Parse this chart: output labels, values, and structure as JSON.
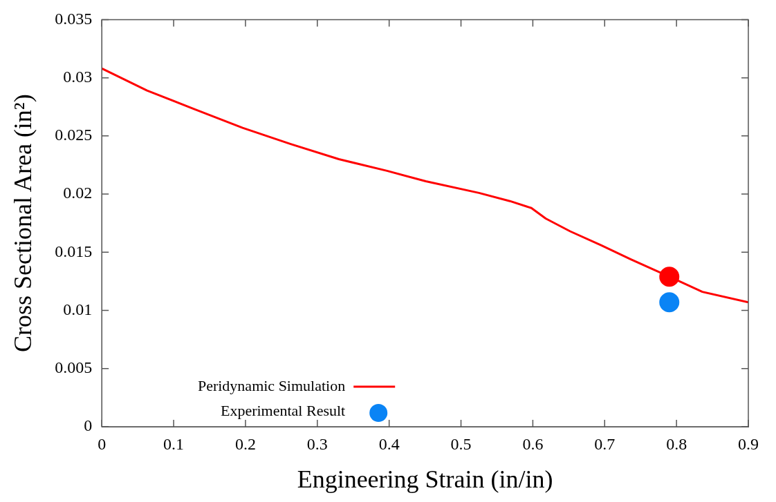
{
  "chart_data": {
    "type": "line",
    "xlabel": "Engineering Strain (in/in)",
    "ylabel": "Cross Sectional Area (in²)",
    "xlim": [
      0,
      0.9
    ],
    "xticks": [
      0,
      0.1,
      0.2,
      0.3,
      0.4,
      0.5,
      0.6,
      0.7,
      0.8,
      0.9
    ],
    "ylim": [
      0,
      0.035
    ],
    "yticks": [
      0,
      0.005,
      0.01,
      0.015,
      0.02,
      0.025,
      0.03,
      0.035
    ],
    "grid": false,
    "legend": "bottom left",
    "series": [
      {
        "name": "Peridynamic Simulation",
        "type": "line",
        "color": "#ff0000",
        "marker": "none",
        "line_style": "solid",
        "x": [
          0,
          0.063,
          0.129,
          0.196,
          0.263,
          0.33,
          0.397,
          0.451,
          0.525,
          0.568,
          0.598,
          0.618,
          0.652,
          0.695,
          0.736,
          0.79,
          0.836,
          0.9
        ],
        "values": [
          0.0308,
          0.0289,
          0.0273,
          0.0257,
          0.0243,
          0.023,
          0.022,
          0.0211,
          0.0201,
          0.0194,
          0.0188,
          0.0179,
          0.0168,
          0.0156,
          0.0144,
          0.0129,
          0.0116,
          0.0107
        ]
      },
      {
        "type": "scatter",
        "color": "#ff0000",
        "marker": "circle",
        "x": [
          0.79
        ],
        "values": [
          0.0129
        ]
      },
      {
        "name": "Experimental Result",
        "type": "scatter",
        "color": "#0a84f5",
        "marker": "circle",
        "x": [
          0.79
        ],
        "values": [
          0.0107
        ]
      }
    ]
  }
}
